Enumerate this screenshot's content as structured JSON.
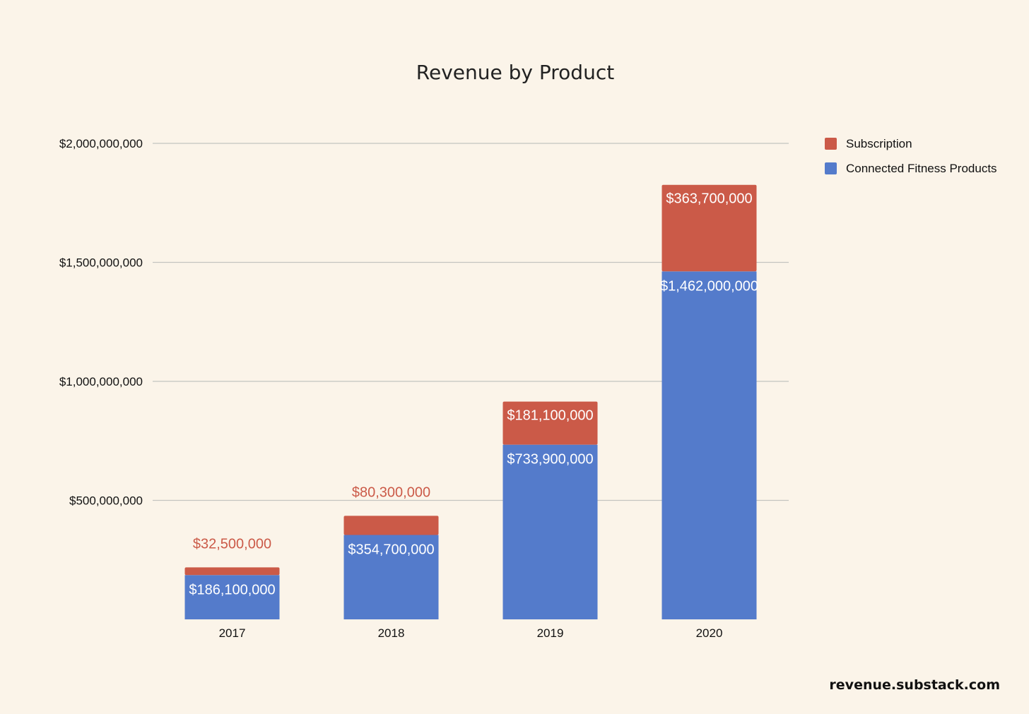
{
  "chart_data": {
    "type": "bar",
    "stacked": true,
    "title": "Revenue by Product",
    "xlabel": "",
    "ylabel": "",
    "categories": [
      "2017",
      "2018",
      "2019",
      "2020"
    ],
    "series": [
      {
        "name": "Connected Fitness Products",
        "color": "#547bcb",
        "values": [
          186100000,
          354700000,
          733900000,
          1462000000
        ],
        "labels": [
          "$186,100,000",
          "$354,700,000",
          "$733,900,000",
          "$1,462,000,000"
        ]
      },
      {
        "name": "Subscription",
        "color": "#cb5a48",
        "values": [
          32500000,
          80300000,
          181100000,
          363700000
        ],
        "labels": [
          "$32,500,000",
          "$80,300,000",
          "$181,100,000",
          "$363,700,000"
        ]
      }
    ],
    "ylim": [
      0,
      2000000000
    ],
    "y_ticks": [
      500000000,
      1000000000,
      1500000000,
      2000000000
    ],
    "y_tick_labels": [
      "$500,000,000",
      "$1,000,000,000",
      "$1,500,000,000",
      "$2,000,000,000"
    ],
    "grid": true,
    "legend": {
      "position": "right",
      "entries": [
        "Subscription",
        "Connected Fitness Products"
      ]
    }
  },
  "watermark": "revenue.substack.com"
}
